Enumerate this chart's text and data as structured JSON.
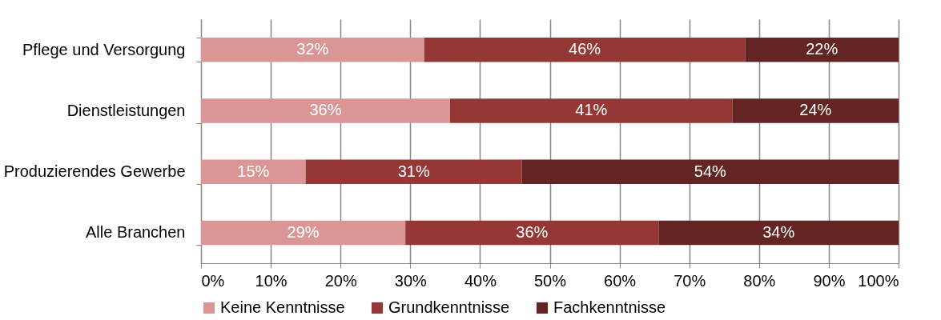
{
  "chart_data": {
    "type": "bar",
    "orientation": "horizontal",
    "stacked": true,
    "categories": [
      "Pflege und Versorgung",
      "Dienstleistungen",
      "Produzierendes Gewerbe",
      "Alle Branchen"
    ],
    "series": [
      {
        "name": "Keine Kenntnisse",
        "color": "#d99694",
        "values": [
          32,
          35.7,
          15,
          29.3
        ],
        "value_labels": [
          "32%",
          "36%",
          "15%",
          "29%"
        ]
      },
      {
        "name": "Grundkenntnisse",
        "color": "#953735",
        "values": [
          46,
          40.5,
          31,
          36.3
        ],
        "value_labels": [
          "46%",
          "41%",
          "31%",
          "36%"
        ]
      },
      {
        "name": "Fachkenntnisse",
        "color": "#632523",
        "values": [
          22,
          23.8,
          54,
          34.4
        ],
        "value_labels": [
          "22%",
          "24%",
          "54%",
          "34%"
        ]
      }
    ],
    "xlim": [
      0,
      100
    ],
    "xticks": [
      {
        "value": 0,
        "label": "0%"
      },
      {
        "value": 10,
        "label": "10%"
      },
      {
        "value": 20,
        "label": "20%"
      },
      {
        "value": 30,
        "label": "30%"
      },
      {
        "value": 40,
        "label": "40%"
      },
      {
        "value": 50,
        "label": "50%"
      },
      {
        "value": 60,
        "label": "60%"
      },
      {
        "value": 70,
        "label": "70%"
      },
      {
        "value": 80,
        "label": "80%"
      },
      {
        "value": 90,
        "label": "90%"
      },
      {
        "value": 100,
        "label": "100%"
      }
    ],
    "grid": "x",
    "legend": "bottom"
  }
}
